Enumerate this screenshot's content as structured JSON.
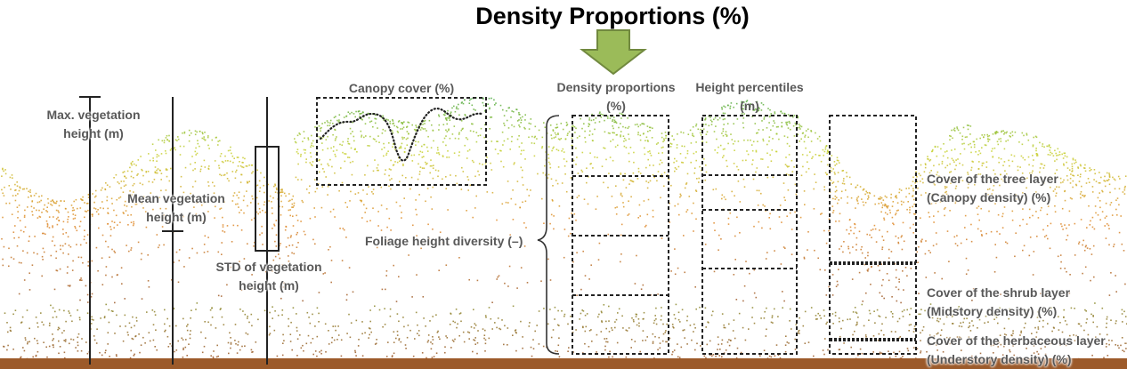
{
  "title": "Density Proportions (%)",
  "labels": {
    "max_height": [
      "Max. vegetation",
      "height (m)"
    ],
    "mean_height": [
      "Mean vegetation",
      "height (m)"
    ],
    "std_height": [
      "STD of vegetation",
      "height (m)"
    ],
    "canopy_cover": "Canopy cover (%)",
    "foliage_diversity": "Foliage height diversity (–)",
    "density_proportions": [
      "Density proportions",
      "(%)"
    ],
    "height_percentiles": [
      "Height percentiles",
      "(m)"
    ],
    "tree_layer": [
      "Cover of the tree layer",
      "(Canopy density) (%)"
    ],
    "shrub_layer": [
      "Cover of the shrub layer",
      "(Midstory density) (%)"
    ],
    "herb_layer": [
      "Cover of the herbaceous layer",
      "(Understory density) (%)"
    ]
  },
  "colors": {
    "arrow_fill": "#9bbb59",
    "arrow_stroke": "#71893f",
    "canopy_top": "#6fb43f",
    "canopy_mid": "#c8d233",
    "understory": "#e08a2c",
    "shrub": "#8c8c2e",
    "ground": "#9c5a2a",
    "stroke": "#222222"
  },
  "icons": {
    "down_arrow": "down-arrow-icon"
  }
}
